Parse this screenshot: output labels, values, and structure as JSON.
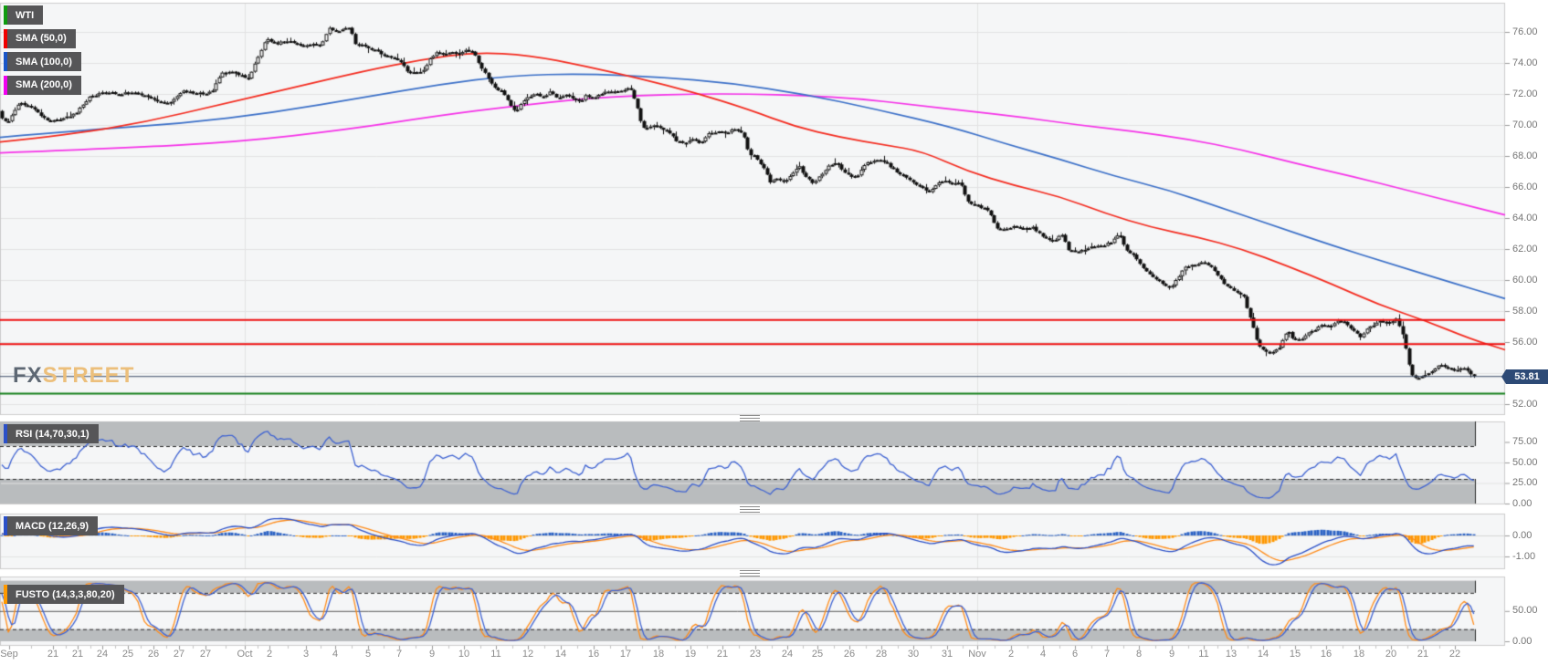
{
  "legend": {
    "items": [
      {
        "label": "WTI",
        "color": "#0f9b0f"
      },
      {
        "label": "SMA (50,0)",
        "color": "#f00000"
      },
      {
        "label": "SMA (100,0)",
        "color": "#1a56c8"
      },
      {
        "label": "SMA (200,0)",
        "color": "#f000f0"
      }
    ]
  },
  "panels": {
    "rsi": {
      "label": "RSI (14,70,30,1)",
      "bar_color": "#2b50c8",
      "ticks": [
        75,
        50,
        25,
        0
      ],
      "overbought": 70,
      "oversold": 30
    },
    "macd": {
      "label": "MACD (12,26,9)",
      "bar_color": "#2b50c8",
      "ticks": [
        0,
        -1
      ]
    },
    "fusto": {
      "label": "FUSTO (14,3,3,80,20)",
      "bar_color": "#ff9900",
      "ticks": [
        50,
        0
      ],
      "upper": 80,
      "lower": 20
    }
  },
  "watermark": {
    "fx": "FX",
    "street": "STREET"
  },
  "price_label": {
    "value": "53.81"
  },
  "colors": {
    "up_candle": "#ffffff",
    "down_candle": "#111111",
    "candle_border": "#111111",
    "sma50": "#f42a1e",
    "sma100": "#3a6fc8",
    "sma200": "#f531e8",
    "rsi_line": "#3f63d2",
    "macd_line": "#2b50c8",
    "macd_signal": "#ff8c1a",
    "hist_pos": "#2b62c4",
    "hist_neg": "#ff9800",
    "resistance": "#ee1111",
    "support": "#15801c",
    "price_line": "#3a4b66",
    "band": "#b9bcbe",
    "grid": "#e3e3e3",
    "panel_bg": "#f5f6f7",
    "border": "#cccccc"
  },
  "chart_data": {
    "type": "candlestick+indicators",
    "symbol": "WTI",
    "x_unit": "px",
    "price_axis_ticks": [
      76,
      74,
      72,
      70,
      68,
      66,
      64,
      62,
      60,
      58,
      56,
      52
    ],
    "last_price": 53.81,
    "levels": {
      "resistance1": 57.45,
      "resistance2": 55.9,
      "support_green": 52.7
    },
    "price_path": [
      [
        0,
        70.5
      ],
      [
        8,
        70.2
      ],
      [
        20,
        71.4
      ],
      [
        34,
        71.2
      ],
      [
        44,
        70.6
      ],
      [
        52,
        70.3
      ],
      [
        62,
        70.3
      ],
      [
        73,
        70.5
      ],
      [
        85,
        70.9
      ],
      [
        100,
        71.9
      ],
      [
        115,
        72.1
      ],
      [
        130,
        72.0
      ],
      [
        145,
        72.1
      ],
      [
        160,
        71.9
      ],
      [
        172,
        71.5
      ],
      [
        180,
        71.3
      ],
      [
        190,
        71.7
      ],
      [
        200,
        72.2
      ],
      [
        212,
        72.1
      ],
      [
        222,
        72.0
      ],
      [
        232,
        72.2
      ],
      [
        242,
        73.4
      ],
      [
        252,
        73.5
      ],
      [
        262,
        73.2
      ],
      [
        272,
        73.0
      ],
      [
        282,
        74.3
      ],
      [
        292,
        75.6
      ],
      [
        302,
        75.2
      ],
      [
        312,
        75.4
      ],
      [
        322,
        75.3
      ],
      [
        332,
        75.1
      ],
      [
        342,
        75.3
      ],
      [
        352,
        75.1
      ],
      [
        360,
        76.3
      ],
      [
        368,
        76.0
      ],
      [
        376,
        76.2
      ],
      [
        383,
        76.3
      ],
      [
        390,
        75.0
      ],
      [
        398,
        75.2
      ],
      [
        406,
        74.9
      ],
      [
        414,
        74.7
      ],
      [
        422,
        74.4
      ],
      [
        430,
        74.3
      ],
      [
        438,
        74.0
      ],
      [
        446,
        73.5
      ],
      [
        454,
        73.3
      ],
      [
        462,
        73.4
      ],
      [
        470,
        74.2
      ],
      [
        478,
        74.7
      ],
      [
        486,
        74.6
      ],
      [
        494,
        74.8
      ],
      [
        502,
        74.6
      ],
      [
        510,
        74.9
      ],
      [
        518,
        74.7
      ],
      [
        526,
        73.8
      ],
      [
        532,
        73.2
      ],
      [
        540,
        72.4
      ],
      [
        548,
        72.2
      ],
      [
        556,
        71.6
      ],
      [
        564,
        70.8
      ],
      [
        570,
        71.3
      ],
      [
        578,
        71.8
      ],
      [
        586,
        72.0
      ],
      [
        594,
        71.8
      ],
      [
        602,
        72.1
      ],
      [
        610,
        71.7
      ],
      [
        618,
        72.0
      ],
      [
        626,
        71.8
      ],
      [
        634,
        71.5
      ],
      [
        642,
        71.9
      ],
      [
        650,
        71.7
      ],
      [
        658,
        72.0
      ],
      [
        666,
        72.2
      ],
      [
        674,
        72.1
      ],
      [
        682,
        72.3
      ],
      [
        690,
        72.4
      ],
      [
        697,
        71.2
      ],
      [
        703,
        69.9
      ],
      [
        710,
        69.8
      ],
      [
        718,
        70.0
      ],
      [
        726,
        69.7
      ],
      [
        734,
        69.4
      ],
      [
        742,
        68.9
      ],
      [
        750,
        68.8
      ],
      [
        758,
        69.1
      ],
      [
        766,
        68.8
      ],
      [
        774,
        69.4
      ],
      [
        782,
        69.6
      ],
      [
        790,
        69.5
      ],
      [
        798,
        69.6
      ],
      [
        806,
        69.8
      ],
      [
        814,
        69.4
      ],
      [
        820,
        68.2
      ],
      [
        828,
        67.9
      ],
      [
        836,
        67.3
      ],
      [
        843,
        66.3
      ],
      [
        851,
        66.5
      ],
      [
        859,
        66.4
      ],
      [
        867,
        66.9
      ],
      [
        875,
        67.3
      ],
      [
        883,
        66.6
      ],
      [
        891,
        66.2
      ],
      [
        899,
        66.8
      ],
      [
        907,
        67.4
      ],
      [
        915,
        67.6
      ],
      [
        923,
        67.1
      ],
      [
        931,
        66.6
      ],
      [
        939,
        66.8
      ],
      [
        947,
        67.5
      ],
      [
        955,
        67.6
      ],
      [
        963,
        67.7
      ],
      [
        971,
        67.5
      ],
      [
        979,
        67.1
      ],
      [
        987,
        66.8
      ],
      [
        995,
        66.4
      ],
      [
        1003,
        66.2
      ],
      [
        1011,
        65.9
      ],
      [
        1019,
        65.7
      ],
      [
        1027,
        66.2
      ],
      [
        1035,
        66.4
      ],
      [
        1043,
        66.2
      ],
      [
        1051,
        66.4
      ],
      [
        1058,
        65.2
      ],
      [
        1066,
        64.8
      ],
      [
        1074,
        64.7
      ],
      [
        1082,
        64.5
      ],
      [
        1090,
        63.4
      ],
      [
        1098,
        63.2
      ],
      [
        1106,
        63.4
      ],
      [
        1114,
        63.5
      ],
      [
        1122,
        63.3
      ],
      [
        1130,
        63.4
      ],
      [
        1138,
        63.0
      ],
      [
        1146,
        62.7
      ],
      [
        1154,
        62.5
      ],
      [
        1162,
        63.1
      ],
      [
        1170,
        61.9
      ],
      [
        1178,
        61.8
      ],
      [
        1186,
        62.0
      ],
      [
        1194,
        62.1
      ],
      [
        1202,
        62.2
      ],
      [
        1210,
        62.3
      ],
      [
        1218,
        62.5
      ],
      [
        1226,
        63.0
      ],
      [
        1233,
        61.9
      ],
      [
        1241,
        61.7
      ],
      [
        1249,
        61.0
      ],
      [
        1257,
        60.4
      ],
      [
        1265,
        60.0
      ],
      [
        1273,
        59.8
      ],
      [
        1281,
        59.5
      ],
      [
        1289,
        60.2
      ],
      [
        1297,
        60.8
      ],
      [
        1305,
        61.0
      ],
      [
        1313,
        61.1
      ],
      [
        1321,
        61.0
      ],
      [
        1329,
        60.7
      ],
      [
        1337,
        60.0
      ],
      [
        1345,
        59.5
      ],
      [
        1353,
        59.3
      ],
      [
        1361,
        59.0
      ],
      [
        1369,
        57.5
      ],
      [
        1377,
        55.9
      ],
      [
        1385,
        55.4
      ],
      [
        1393,
        55.3
      ],
      [
        1401,
        55.6
      ],
      [
        1409,
        56.8
      ],
      [
        1417,
        56.1
      ],
      [
        1425,
        56.2
      ],
      [
        1433,
        56.6
      ],
      [
        1441,
        56.9
      ],
      [
        1449,
        57.1
      ],
      [
        1457,
        57.0
      ],
      [
        1465,
        57.4
      ],
      [
        1473,
        57.2
      ],
      [
        1481,
        56.8
      ],
      [
        1489,
        56.3
      ],
      [
        1497,
        56.9
      ],
      [
        1505,
        57.1
      ],
      [
        1513,
        57.4
      ],
      [
        1521,
        57.2
      ],
      [
        1529,
        57.5
      ],
      [
        1537,
        56.2
      ],
      [
        1545,
        53.9
      ],
      [
        1553,
        53.6
      ],
      [
        1561,
        53.9
      ],
      [
        1569,
        54.2
      ],
      [
        1577,
        54.5
      ],
      [
        1585,
        54.4
      ],
      [
        1593,
        54.2
      ],
      [
        1601,
        54.4
      ],
      [
        1609,
        54.0
      ],
      [
        1616,
        53.81
      ]
    ],
    "sma50_path": [
      [
        0,
        68.9
      ],
      [
        80,
        69.4
      ],
      [
        160,
        70.2
      ],
      [
        240,
        71.3
      ],
      [
        320,
        72.4
      ],
      [
        400,
        73.5
      ],
      [
        460,
        74.2
      ],
      [
        520,
        74.7
      ],
      [
        580,
        74.5
      ],
      [
        640,
        73.8
      ],
      [
        700,
        73.0
      ],
      [
        760,
        72.1
      ],
      [
        820,
        71.0
      ],
      [
        870,
        69.9
      ],
      [
        920,
        69.2
      ],
      [
        970,
        68.7
      ],
      [
        1010,
        68.3
      ],
      [
        1060,
        67.0
      ],
      [
        1110,
        66.1
      ],
      [
        1160,
        65.4
      ],
      [
        1210,
        64.3
      ],
      [
        1260,
        63.4
      ],
      [
        1310,
        62.8
      ],
      [
        1360,
        62.0
      ],
      [
        1410,
        60.9
      ],
      [
        1460,
        59.7
      ],
      [
        1510,
        58.4
      ],
      [
        1560,
        57.4
      ],
      [
        1610,
        56.2
      ],
      [
        1648,
        55.5
      ]
    ],
    "sma100_path": [
      [
        0,
        69.2
      ],
      [
        100,
        69.7
      ],
      [
        200,
        70.1
      ],
      [
        300,
        70.8
      ],
      [
        400,
        71.8
      ],
      [
        480,
        72.6
      ],
      [
        560,
        73.2
      ],
      [
        640,
        73.3
      ],
      [
        720,
        73.1
      ],
      [
        800,
        72.7
      ],
      [
        880,
        72.0
      ],
      [
        960,
        71.0
      ],
      [
        1040,
        69.9
      ],
      [
        1100,
        68.8
      ],
      [
        1160,
        67.8
      ],
      [
        1220,
        66.7
      ],
      [
        1280,
        65.8
      ],
      [
        1340,
        64.6
      ],
      [
        1400,
        63.4
      ],
      [
        1460,
        62.2
      ],
      [
        1520,
        61.1
      ],
      [
        1580,
        60.0
      ],
      [
        1648,
        58.8
      ]
    ],
    "sma200_path": [
      [
        0,
        68.2
      ],
      [
        130,
        68.5
      ],
      [
        260,
        68.9
      ],
      [
        380,
        69.7
      ],
      [
        480,
        70.6
      ],
      [
        560,
        71.2
      ],
      [
        640,
        71.7
      ],
      [
        700,
        71.9
      ],
      [
        760,
        72.0
      ],
      [
        820,
        72.0
      ],
      [
        880,
        71.9
      ],
      [
        940,
        71.7
      ],
      [
        1000,
        71.3
      ],
      [
        1060,
        70.9
      ],
      [
        1120,
        70.5
      ],
      [
        1180,
        70.0
      ],
      [
        1240,
        69.6
      ],
      [
        1300,
        69.1
      ],
      [
        1360,
        68.4
      ],
      [
        1420,
        67.5
      ],
      [
        1480,
        66.7
      ],
      [
        1540,
        65.8
      ],
      [
        1600,
        64.9
      ],
      [
        1648,
        64.2
      ]
    ],
    "time_axis": [
      [
        "Sep",
        10
      ],
      [
        "21",
        58
      ],
      [
        "21",
        85
      ],
      [
        "24",
        112
      ],
      [
        "25",
        140
      ],
      [
        "26",
        168
      ],
      [
        "27",
        196
      ],
      [
        "27",
        225
      ],
      [
        "Oct",
        268
      ],
      [
        "2",
        295
      ],
      [
        "3",
        335
      ],
      [
        "4",
        367
      ],
      [
        "5",
        403
      ],
      [
        "7",
        437
      ],
      [
        "9",
        473
      ],
      [
        "10",
        508
      ],
      [
        "11",
        543
      ],
      [
        "12",
        578
      ],
      [
        "14",
        614
      ],
      [
        "16",
        650
      ],
      [
        "17",
        685
      ],
      [
        "18",
        721
      ],
      [
        "19",
        756
      ],
      [
        "21",
        791
      ],
      [
        "23",
        827
      ],
      [
        "24",
        862
      ],
      [
        "25",
        895
      ],
      [
        "26",
        930
      ],
      [
        "28",
        965
      ],
      [
        "30",
        1000
      ],
      [
        "31",
        1037
      ],
      [
        "Nov",
        1070
      ],
      [
        "2",
        1107
      ],
      [
        "4",
        1142
      ],
      [
        "6",
        1177
      ],
      [
        "7",
        1212
      ],
      [
        "8",
        1247
      ],
      [
        "9",
        1283
      ],
      [
        "11",
        1318
      ],
      [
        "13",
        1348
      ],
      [
        "14",
        1383
      ],
      [
        "15",
        1418
      ],
      [
        "16",
        1452
      ],
      [
        "18",
        1488
      ],
      [
        "20",
        1523
      ],
      [
        "21",
        1558
      ],
      [
        "22",
        1593
      ]
    ],
    "month_gridlines_x": [
      268,
      1070
    ]
  }
}
